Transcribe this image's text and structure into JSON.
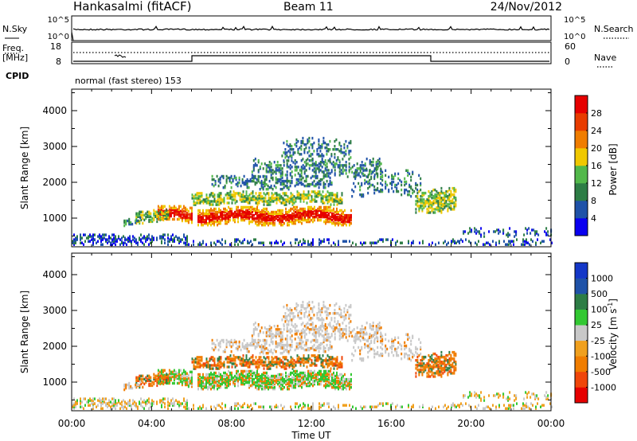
{
  "header": {
    "station": "Hankasalmi (fitACF)",
    "beam": "Beam 11",
    "date": "24/Nov/2012"
  },
  "nsky_panel": {
    "left_label": "N.Sky",
    "right_label": "N.Search",
    "left_ticks": [
      "10^5",
      "10^0"
    ],
    "right_ticks": [
      "10^5",
      "10^0"
    ]
  },
  "freq_panel": {
    "left_label_line1": "Freq.",
    "left_label_line2": "[MHz]",
    "right_label": "Nave",
    "left_ticks": [
      "18",
      "8"
    ],
    "right_ticks": [
      "60",
      "0"
    ]
  },
  "cpid": {
    "label": "CPID",
    "value": "normal (fast stereo) 153"
  },
  "colors": {
    "power": [
      "#0a00f0",
      "#1f52a8",
      "#2d7d45",
      "#52b84a",
      "#f0c800",
      "#f07d00",
      "#e83c00",
      "#e60000"
    ],
    "velocity": [
      "#e60000",
      "#f0460a",
      "#f07d00",
      "#f0a01e",
      "#c8c8c8",
      "#32c832",
      "#2d7d45",
      "#1f52a8",
      "#1437c8"
    ]
  },
  "chart_data": [
    {
      "type": "heatmap",
      "name": "power",
      "ylabel": "Slant Range [km]",
      "yticks": [
        "4000",
        "3000",
        "2000",
        "1000"
      ],
      "ylim": [
        200,
        4600
      ],
      "colorbar_label": "Power [dB]",
      "colorbar_ticks": [
        "28",
        "24",
        "20",
        "16",
        "12",
        "8",
        "4"
      ],
      "xlim_hours": [
        0,
        24
      ]
    },
    {
      "type": "heatmap",
      "name": "velocity",
      "ylabel": "Slant Range [km]",
      "yticks": [
        "4000",
        "3000",
        "2000",
        "1000"
      ],
      "ylim": [
        200,
        4600
      ],
      "colorbar_label": "Velocity [m s",
      "colorbar_label_sup": "-1",
      "colorbar_label_end": "]",
      "colorbar_ticks": [
        "1000",
        "500",
        "100",
        "25",
        "-25",
        "-100",
        "-500",
        "-1000"
      ],
      "xlim_hours": [
        0,
        24
      ]
    }
  ],
  "xaxis": {
    "ticks": [
      "00:00",
      "04:00",
      "08:00",
      "12:00",
      "16:00",
      "20:00",
      "00:00"
    ],
    "label": "Time UT"
  }
}
